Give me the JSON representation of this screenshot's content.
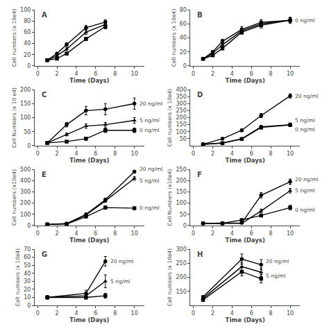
{
  "chart_data": [
    {
      "type": "line",
      "title": "A",
      "xlabel": "Time (Days)",
      "ylabel": "Cell numbers (x 10e4)",
      "xlim": [
        -0.3,
        11.0
      ],
      "xticks": [
        0,
        2,
        4,
        6,
        8,
        10
      ],
      "ylim": [
        0,
        100
      ],
      "yticks": [
        0,
        20,
        40,
        60,
        80,
        100
      ],
      "grid": false,
      "x": [
        1,
        2,
        3,
        5,
        7
      ],
      "series": [
        {
          "color": "black",
          "marker": "circle",
          "values": [
            10,
            22,
            38,
            68,
            78
          ],
          "errors": [
            1,
            2,
            3,
            4,
            4
          ]
        },
        {
          "color": "black",
          "marker": "triangle-up",
          "values": [
            10,
            18,
            30,
            60,
            74
          ],
          "errors": [
            1,
            2,
            3,
            4,
            4
          ]
        },
        {
          "color": "black",
          "marker": "square",
          "values": [
            10,
            13,
            22,
            48,
            70
          ],
          "errors": [
            1,
            1,
            2,
            3,
            4
          ]
        }
      ]
    },
    {
      "type": "line",
      "title": "B",
      "xlabel": "Time (Days)",
      "ylabel": "Cell numbers (x 10e4)",
      "xlim": [
        -0.3,
        11.0
      ],
      "xticks": [
        0,
        2,
        4,
        6,
        8,
        10
      ],
      "ylim": [
        0,
        80
      ],
      "yticks": [
        0,
        20,
        40,
        60,
        80
      ],
      "grid": false,
      "x": [
        1,
        2,
        3,
        5,
        7,
        10
      ],
      "series": [
        {
          "color": "black",
          "marker": "circle",
          "values": [
            10,
            20,
            35,
            52,
            62,
            65
          ],
          "errors": [
            1,
            2,
            3,
            4,
            4,
            4
          ]
        },
        {
          "color": "black",
          "marker": "triangle-up",
          "values": [
            10,
            18,
            30,
            50,
            60,
            65
          ],
          "errors": [
            1,
            1,
            2,
            4,
            4,
            4
          ]
        },
        {
          "name": "0 ng/ml",
          "color": "black",
          "marker": "square",
          "values": [
            10,
            15,
            25,
            48,
            58,
            65
          ],
          "errors": [
            1,
            1,
            2,
            3,
            4,
            4
          ]
        }
      ]
    },
    {
      "type": "line",
      "title": "C",
      "xlabel": "Time (Days)",
      "ylabel": "Cell Numbers (x 10 e4)",
      "xlim": [
        -0.3,
        11.0
      ],
      "xticks": [
        0,
        2,
        4,
        6,
        8,
        10
      ],
      "ylim": [
        0,
        200
      ],
      "yticks": [
        0,
        50,
        100,
        150,
        200
      ],
      "grid": false,
      "x": [
        1,
        3,
        5,
        7,
        10
      ],
      "series": [
        {
          "name": "20 ng/ml",
          "color": "black",
          "marker": "circle",
          "values": [
            10,
            75,
            125,
            130,
            150
          ],
          "errors": [
            2,
            8,
            15,
            20,
            20
          ]
        },
        {
          "name": "5 ng/ml",
          "color": "black",
          "marker": "triangle-up",
          "values": [
            10,
            40,
            70,
            75,
            90
          ],
          "errors": [
            2,
            5,
            8,
            8,
            10
          ]
        },
        {
          "name": "0 ng/ml",
          "color": "black",
          "marker": "square",
          "values": [
            10,
            15,
            25,
            55,
            55
          ],
          "errors": [
            2,
            3,
            5,
            8,
            8
          ]
        }
      ]
    },
    {
      "type": "line",
      "title": "D",
      "xlabel": "Time (Days)",
      "ylabel": "Cell numbers (x 10e4)",
      "xlim": [
        -0.3,
        11.0
      ],
      "xticks": [
        0,
        2,
        4,
        6,
        8,
        10
      ],
      "ylim": [
        0,
        400
      ],
      "yticks": [
        50,
        100,
        150,
        200,
        250,
        300,
        350,
        400
      ],
      "grid": false,
      "x": [
        1,
        3,
        5,
        7,
        10
      ],
      "series": [
        {
          "name": "20 ng/ml",
          "color": "black",
          "marker": "circle",
          "values": [
            10,
            50,
            110,
            215,
            355
          ],
          "errors": [
            2,
            5,
            10,
            15,
            15
          ]
        },
        {
          "name": "5 ng/ml",
          "color": "black",
          "marker": "triangle-up",
          "values": [
            10,
            20,
            50,
            135,
            150
          ],
          "errors": [
            2,
            3,
            5,
            10,
            12
          ]
        },
        {
          "name": "0 ng/ml",
          "color": "black",
          "marker": "square",
          "values": [
            10,
            18,
            48,
            130,
            148
          ],
          "errors": [
            2,
            3,
            5,
            10,
            10
          ]
        }
      ]
    },
    {
      "type": "line",
      "title": "E",
      "xlabel": "Time (Days)",
      "ylabel": "Cell numbers (x10e4)",
      "xlim": [
        -0.3,
        11.0
      ],
      "xticks": [
        0,
        2,
        4,
        6,
        8,
        10
      ],
      "ylim": [
        0,
        500
      ],
      "yticks": [
        0,
        100,
        200,
        300,
        400,
        500
      ],
      "grid": false,
      "x": [
        1,
        3,
        5,
        7,
        10
      ],
      "series": [
        {
          "name": "20 ng/ml",
          "color": "black",
          "marker": "circle",
          "values": [
            10,
            18,
            100,
            230,
            480
          ],
          "errors": [
            2,
            3,
            10,
            15,
            10
          ]
        },
        {
          "name": "5 ng/ml",
          "color": "black",
          "marker": "triangle-up",
          "values": [
            10,
            16,
            95,
            220,
            420
          ],
          "errors": [
            2,
            3,
            10,
            15,
            15
          ]
        },
        {
          "name": "0 ng/ml",
          "color": "black",
          "marker": "square",
          "values": [
            10,
            14,
            80,
            160,
            155
          ],
          "errors": [
            2,
            3,
            8,
            15,
            10
          ]
        }
      ]
    },
    {
      "type": "line",
      "title": "F",
      "xlabel": "Time (Days)",
      "ylabel": "Cell Numbers (x10e4)",
      "xlim": [
        -0.3,
        11.0
      ],
      "xticks": [
        0,
        2,
        4,
        6,
        8,
        10
      ],
      "ylim": [
        0,
        250
      ],
      "yticks": [
        0,
        50,
        100,
        150,
        200,
        250
      ],
      "grid": false,
      "x": [
        1,
        3,
        5,
        7,
        10
      ],
      "series": [
        {
          "name": "20 ng/ml",
          "color": "black",
          "marker": "circle",
          "values": [
            10,
            10,
            12,
            135,
            195
          ],
          "errors": [
            2,
            2,
            3,
            12,
            12
          ]
        },
        {
          "name": "5 ng/ml",
          "color": "black",
          "marker": "triangle-up",
          "values": [
            10,
            10,
            10,
            65,
            155
          ],
          "errors": [
            2,
            2,
            3,
            8,
            10
          ]
        },
        {
          "name": "0 ng/ml",
          "color": "black",
          "marker": "square",
          "values": [
            10,
            10,
            25,
            45,
            80
          ],
          "errors": [
            2,
            2,
            4,
            6,
            10
          ]
        }
      ]
    },
    {
      "type": "line",
      "title": "G",
      "xlabel": "Time (Days)",
      "ylabel": "Cell numbers (x 10e4)",
      "xlim": [
        -0.3,
        11.0
      ],
      "xticks": [
        0,
        2,
        4,
        6,
        8,
        10
      ],
      "ylim": [
        0,
        70
      ],
      "yticks": [
        0,
        10,
        20,
        30,
        40,
        50,
        60,
        70
      ],
      "grid": false,
      "x": [
        1,
        5,
        7
      ],
      "series": [
        {
          "name": "20 ng/ml",
          "color": "black",
          "marker": "circle",
          "values": [
            10,
            15,
            55
          ],
          "errors": [
            2,
            4,
            6
          ]
        },
        {
          "name": "5 ng/ml",
          "color": "black",
          "marker": "triangle-up",
          "values": [
            10,
            12,
            30
          ],
          "errors": [
            2,
            4,
            8
          ]
        },
        {
          "color": "black",
          "marker": "square",
          "values": [
            10,
            10,
            12
          ],
          "errors": [
            2,
            2,
            3
          ]
        }
      ]
    },
    {
      "type": "line",
      "title": "H",
      "xlabel": "Time (Days)",
      "ylabel": "Cell numbers (x 10e4)",
      "xlim": [
        -0.3,
        11.0
      ],
      "xticks": [
        0,
        2,
        4,
        6,
        8,
        10
      ],
      "ylim": [
        100,
        300
      ],
      "yticks": [
        150,
        200,
        250,
        300
      ],
      "grid": false,
      "x": [
        1,
        5,
        7
      ],
      "series": [
        {
          "name": "20 ng/ml",
          "color": "black",
          "marker": "circle",
          "values": [
            130,
            265,
            245
          ],
          "errors": [
            5,
            18,
            18
          ]
        },
        {
          "name": "5 ng/ml",
          "color": "black",
          "marker": "triangle-up",
          "values": [
            125,
            238,
            218
          ],
          "errors": [
            5,
            15,
            15
          ]
        },
        {
          "color": "black",
          "marker": "square",
          "values": [
            120,
            220,
            195
          ],
          "errors": [
            5,
            15,
            15
          ]
        }
      ]
    }
  ]
}
